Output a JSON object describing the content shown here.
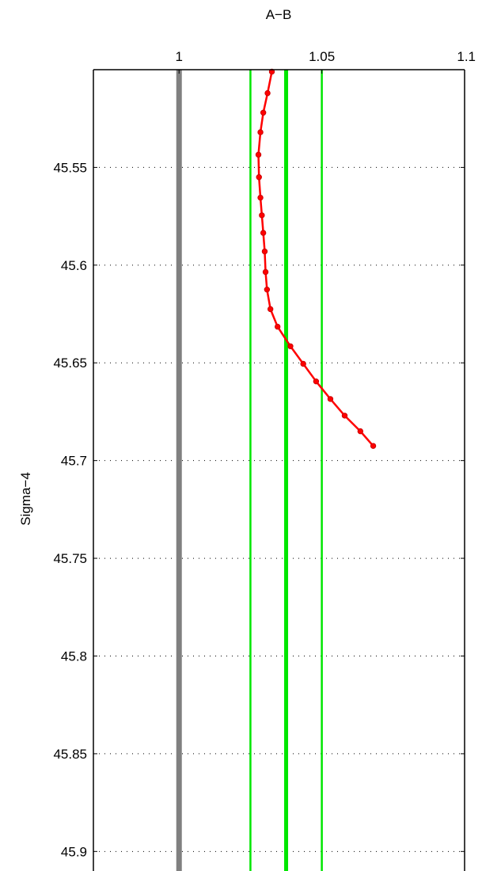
{
  "chart_data": {
    "type": "line",
    "title": "",
    "xlabel": "A−B",
    "ylabel": "Sigma−4",
    "xlim": [
      0.97,
      1.1
    ],
    "ylim": [
      45.5,
      45.91
    ],
    "y_reversed": true,
    "x_axis_position": "top",
    "x_ticks": [
      1,
      1.05,
      1.1
    ],
    "x_tick_labels": [
      "1",
      "1.05",
      "1.1"
    ],
    "y_ticks": [
      45.55,
      45.6,
      45.65,
      45.7,
      45.75,
      45.8,
      45.85,
      45.9
    ],
    "y_tick_labels": [
      "45.55",
      "45.6",
      "45.65",
      "45.7",
      "45.75",
      "45.8",
      "45.85",
      "45.9"
    ],
    "grid": true,
    "reference_lines": [
      {
        "name": "",
        "x": 1.0,
        "color": "#808080",
        "style": "thick"
      },
      {
        "name": "",
        "x": 1.025,
        "color": "#00e600",
        "style": "thin"
      },
      {
        "name": "",
        "x": 1.0375,
        "color": "#00e600",
        "style": "thick"
      },
      {
        "name": "",
        "x": 1.05,
        "color": "#00e600",
        "style": "thin"
      }
    ],
    "series": [
      {
        "name": "",
        "color": "#ff0000",
        "points": [
          [
            1.0325,
            45.501
          ],
          [
            1.031,
            45.512
          ],
          [
            1.0295,
            45.522
          ],
          [
            1.0285,
            45.532
          ],
          [
            1.0278,
            45.5435
          ],
          [
            1.028,
            45.555
          ],
          [
            1.0285,
            45.5655
          ],
          [
            1.029,
            45.5745
          ],
          [
            1.0295,
            45.5835
          ],
          [
            1.03,
            45.593
          ],
          [
            1.0303,
            45.6035
          ],
          [
            1.0308,
            45.6125
          ],
          [
            1.032,
            45.6225
          ],
          [
            1.0345,
            45.6315
          ],
          [
            1.039,
            45.6415
          ],
          [
            1.0435,
            45.6505
          ],
          [
            1.048,
            45.6595
          ],
          [
            1.053,
            45.6685
          ],
          [
            1.058,
            45.677
          ],
          [
            1.0635,
            45.685
          ],
          [
            1.068,
            45.6925
          ]
        ]
      }
    ]
  }
}
